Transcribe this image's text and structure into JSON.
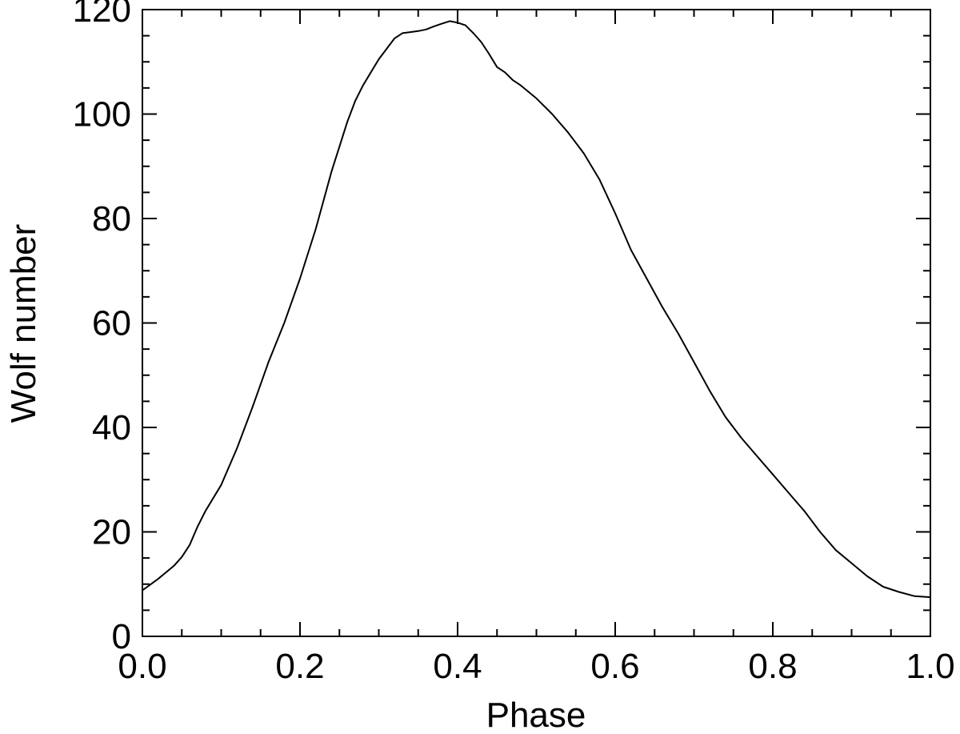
{
  "chart_data": {
    "type": "line",
    "title": "",
    "xlabel": "Phase",
    "ylabel": "Wolf number",
    "xlim": [
      0.0,
      1.0
    ],
    "ylim": [
      0,
      120
    ],
    "grid": false,
    "x_ticks": [
      "0.0",
      "0.2",
      "0.4",
      "0.6",
      "0.8",
      "1.0"
    ],
    "y_ticks": [
      "0",
      "20",
      "40",
      "60",
      "80",
      "100",
      "120"
    ],
    "x_minor_step": 0.05,
    "y_minor_step": 5,
    "line_color": "#000000",
    "series": [
      {
        "x": [
          0.0,
          0.02,
          0.04,
          0.05,
          0.06,
          0.07,
          0.08,
          0.1,
          0.12,
          0.14,
          0.16,
          0.18,
          0.2,
          0.22,
          0.24,
          0.26,
          0.27,
          0.28,
          0.29,
          0.3,
          0.31,
          0.32,
          0.33,
          0.34,
          0.35,
          0.36,
          0.37,
          0.38,
          0.39,
          0.4,
          0.41,
          0.42,
          0.43,
          0.44,
          0.45,
          0.46,
          0.47,
          0.48,
          0.5,
          0.52,
          0.54,
          0.56,
          0.58,
          0.6,
          0.62,
          0.64,
          0.66,
          0.68,
          0.7,
          0.72,
          0.74,
          0.76,
          0.78,
          0.8,
          0.82,
          0.84,
          0.86,
          0.88,
          0.9,
          0.92,
          0.94,
          0.96,
          0.98,
          1.0
        ],
        "y": [
          8.8,
          11.0,
          13.5,
          15.2,
          17.5,
          21.0,
          24.0,
          29.0,
          36.0,
          44.0,
          52.5,
          60.0,
          68.5,
          78.0,
          89.0,
          98.5,
          102.5,
          105.5,
          108.0,
          110.5,
          112.5,
          114.5,
          115.5,
          115.7,
          115.9,
          116.2,
          116.8,
          117.3,
          117.8,
          117.5,
          117.0,
          115.5,
          113.8,
          111.5,
          109.0,
          108.0,
          106.5,
          105.5,
          103.0,
          100.0,
          96.5,
          92.5,
          87.5,
          81.0,
          74.0,
          68.5,
          63.0,
          58.0,
          52.5,
          47.0,
          42.0,
          38.0,
          34.5,
          31.0,
          27.5,
          24.0,
          20.0,
          16.5,
          14.0,
          11.5,
          9.5,
          8.5,
          7.7,
          7.5
        ]
      }
    ]
  }
}
